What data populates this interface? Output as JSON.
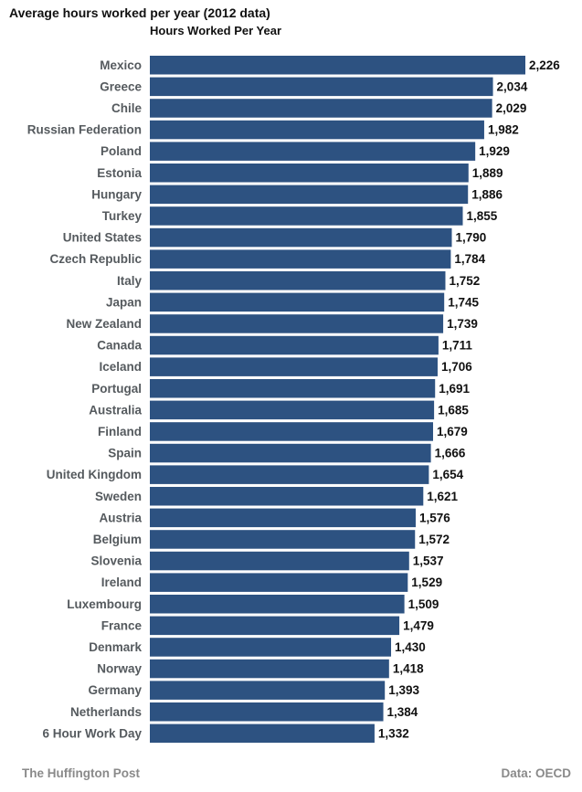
{
  "chart_data": {
    "type": "bar",
    "orientation": "horizontal",
    "title": "Average hours worked per year (2012 data)",
    "subtitle": "Hours Worked Per Year",
    "categories": [
      "Mexico",
      "Greece",
      "Chile",
      "Russian Federation",
      "Poland",
      "Estonia",
      "Hungary",
      "Turkey",
      "United States",
      "Czech Republic",
      "Italy",
      "Japan",
      "New Zealand",
      "Canada",
      "Iceland",
      "Portugal",
      "Australia",
      "Finland",
      "Spain",
      "United Kingdom",
      "Sweden",
      "Austria",
      "Belgium",
      "Slovenia",
      "Ireland",
      "Luxembourg",
      "France",
      "Denmark",
      "Norway",
      "Germany",
      "Netherlands",
      "6 Hour Work Day"
    ],
    "values": [
      2226,
      2034,
      2029,
      1982,
      1929,
      1889,
      1886,
      1855,
      1790,
      1784,
      1752,
      1745,
      1739,
      1711,
      1706,
      1691,
      1685,
      1679,
      1666,
      1654,
      1621,
      1576,
      1572,
      1537,
      1529,
      1509,
      1479,
      1430,
      1418,
      1393,
      1384,
      1332
    ],
    "value_labels": [
      "2,226",
      "2,034",
      "2,029",
      "1,982",
      "1,929",
      "1,889",
      "1,886",
      "1,855",
      "1,790",
      "1,784",
      "1,752",
      "1,745",
      "1,739",
      "1,711",
      "1,706",
      "1,691",
      "1,685",
      "1,679",
      "1,666",
      "1,654",
      "1,621",
      "1,576",
      "1,572",
      "1,537",
      "1,529",
      "1,509",
      "1,479",
      "1,430",
      "1,418",
      "1,393",
      "1,384",
      "1,332"
    ],
    "bar_color": "#2d5281",
    "grid": false,
    "legend": "none"
  },
  "footer": {
    "source_left": "The Huffington Post",
    "source_right": "Data: OECD"
  }
}
